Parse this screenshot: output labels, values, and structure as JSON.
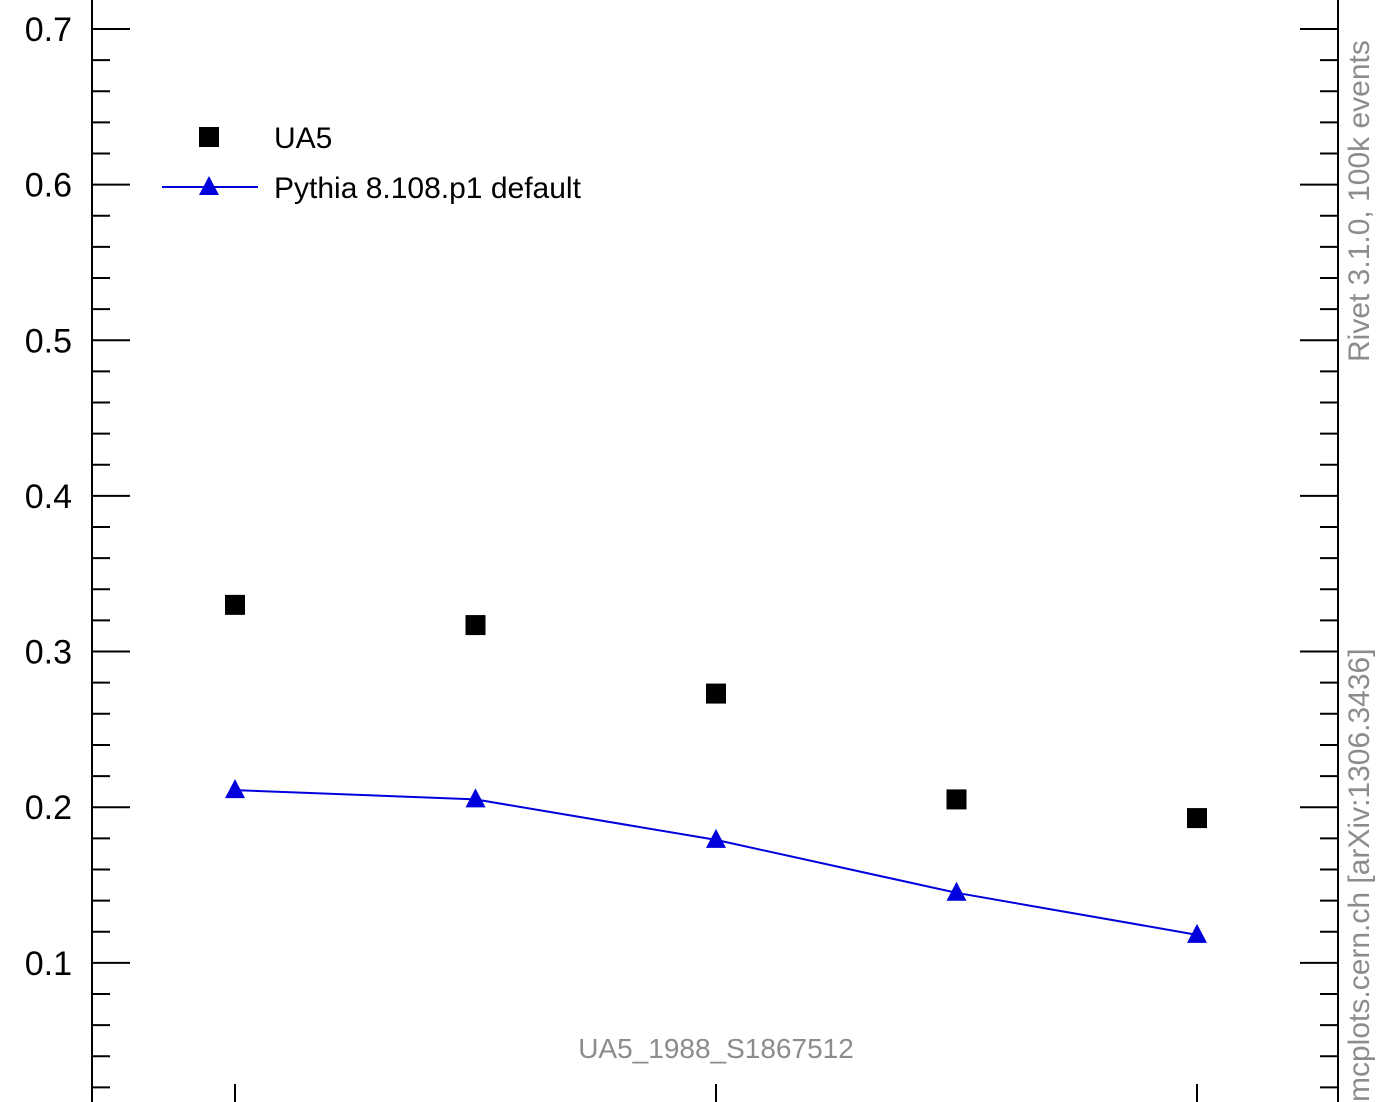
{
  "chart_data": {
    "type": "scatter",
    "xlim": [
      0.5,
      5.5
    ],
    "ylim": [
      0.0,
      0.7
    ],
    "y_ticks": [
      "0.7",
      "0.6",
      "0.5",
      "0.4",
      "0.3",
      "0.2",
      "0.1"
    ],
    "x": [
      1,
      2,
      3,
      4,
      5
    ],
    "series": [
      {
        "name": "UA5",
        "marker": "square",
        "color": "#000000",
        "line": false,
        "values": [
          0.33,
          0.317,
          0.273,
          0.205,
          0.193
        ]
      },
      {
        "name": "Pythia 8.108.p1 default",
        "marker": "triangle",
        "color": "#0000dd",
        "line": true,
        "values": [
          0.211,
          0.205,
          0.179,
          0.145,
          0.118
        ]
      }
    ],
    "legend_position": "top-left",
    "annotation": "UA5_1988_S1867512",
    "side_label_top": "Rivet 3.1.0,  100k events",
    "side_label_bottom": "mcplots.cern.ch [arXiv:1306.3436]"
  }
}
